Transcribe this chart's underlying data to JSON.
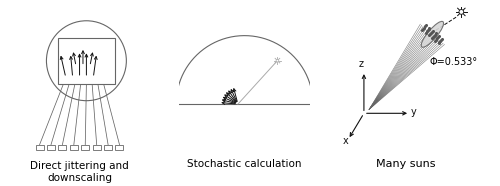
{
  "label1": "Direct jittering and\ndownscaling",
  "label2": "Stochastic calculation",
  "label3": "Many suns",
  "phi_label": "Φ=0.533°",
  "bg_color": "#ffffff",
  "line_color": "#666666",
  "dark_color": "#111111",
  "gray_color": "#aaaaaa",
  "font_size": 7.5
}
